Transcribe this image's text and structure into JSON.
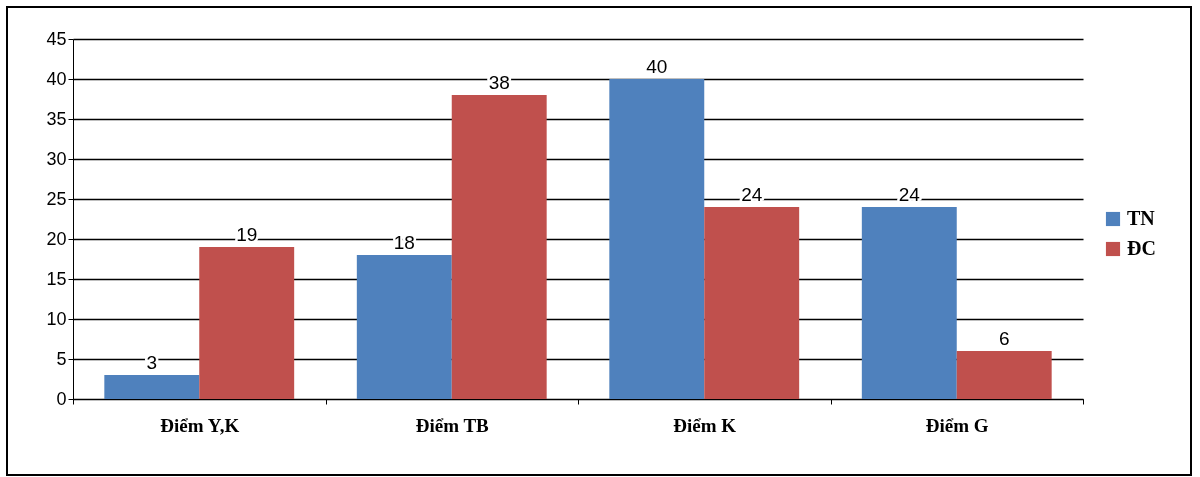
{
  "chart_data": {
    "type": "bar",
    "categories": [
      "Điểm Y,K",
      "Điểm TB",
      "Điểm K",
      "Điểm G"
    ],
    "series": [
      {
        "name": "TN",
        "color": "#4f81bd",
        "values": [
          3,
          18,
          40,
          24
        ]
      },
      {
        "name": "ĐC",
        "color": "#c0504d",
        "values": [
          19,
          38,
          24,
          6
        ]
      }
    ],
    "ylim": [
      0,
      45
    ],
    "yticks": [
      0,
      5,
      10,
      15,
      20,
      25,
      30,
      35,
      40,
      45
    ],
    "grid": "y",
    "legend": "right",
    "data_labels": true
  }
}
